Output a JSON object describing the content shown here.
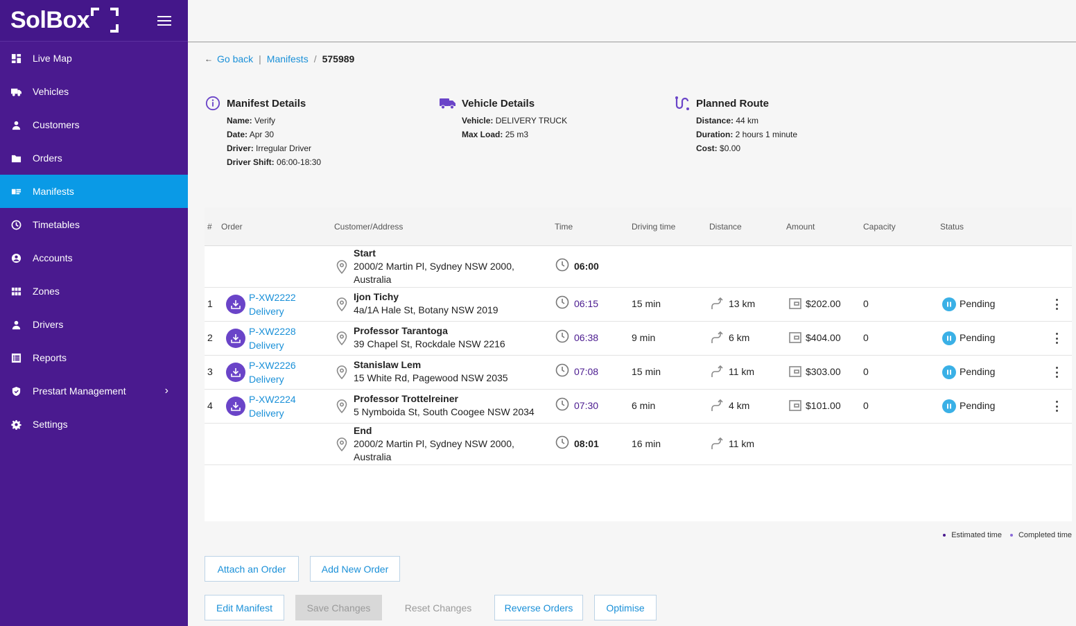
{
  "brand": {
    "logo_text": "SolBox"
  },
  "sidebar": {
    "items": [
      {
        "label": "Live Map",
        "icon": "dashboard-icon"
      },
      {
        "label": "Vehicles",
        "icon": "truck-icon"
      },
      {
        "label": "Customers",
        "icon": "person-icon"
      },
      {
        "label": "Orders",
        "icon": "folder-icon"
      },
      {
        "label": "Manifests",
        "icon": "manifest-icon",
        "active": true
      },
      {
        "label": "Timetables",
        "icon": "clock-icon"
      },
      {
        "label": "Accounts",
        "icon": "account-circle-icon"
      },
      {
        "label": "Zones",
        "icon": "grid-icon"
      },
      {
        "label": "Drivers",
        "icon": "person-icon"
      },
      {
        "label": "Reports",
        "icon": "report-icon"
      },
      {
        "label": "Prestart Management",
        "icon": "shield-icon",
        "has_submenu": true
      },
      {
        "label": "Settings",
        "icon": "gear-icon"
      }
    ]
  },
  "breadcrumb": {
    "back": "Go back",
    "parent": "Manifests",
    "separator": "/",
    "current": "575989",
    "divider": "|"
  },
  "manifest_details": {
    "title": "Manifest Details",
    "name_label": "Name:",
    "name": "Verify",
    "date_label": "Date:",
    "date": "Apr 30",
    "driver_label": "Driver:",
    "driver": "Irregular Driver",
    "shift_label": "Driver Shift:",
    "shift": "06:00-18:30"
  },
  "vehicle_details": {
    "title": "Vehicle Details",
    "vehicle_label": "Vehicle:",
    "vehicle": "DELIVERY TRUCK",
    "max_load_label": "Max Load:",
    "max_load": "25  m3"
  },
  "planned_route": {
    "title": "Planned Route",
    "distance_label": "Distance:",
    "distance": "44 km",
    "duration_label": "Duration:",
    "duration": "2 hours 1 minute",
    "cost_label": "Cost:",
    "cost": "$0.00"
  },
  "table": {
    "headers": {
      "num": "#",
      "order": "Order",
      "customer": "Customer/Address",
      "time": "Time",
      "driving": "Driving time",
      "distance": "Distance",
      "amount": "Amount",
      "capacity": "Capacity",
      "status": "Status"
    },
    "start": {
      "title": "Start",
      "address_line1": "2000/2 Martin Pl, Sydney NSW 2000,",
      "address_line2": "Australia",
      "time": "06:00"
    },
    "rows": [
      {
        "num": "1",
        "order_id": "P-XW2222",
        "order_type": "Delivery",
        "customer": "Ijon Tichy",
        "address": "4a/1A Hale St, Botany NSW 2019",
        "time": "06:15",
        "driving": "15 min",
        "distance": "13 km",
        "amount": "$202.00",
        "capacity": "0",
        "status": "Pending"
      },
      {
        "num": "2",
        "order_id": "P-XW2228",
        "order_type": "Delivery",
        "customer": "Professor Tarantoga",
        "address": "39 Chapel St, Rockdale NSW 2216",
        "time": "06:38",
        "driving": "9 min",
        "distance": "6 km",
        "amount": "$404.00",
        "capacity": "0",
        "status": "Pending"
      },
      {
        "num": "3",
        "order_id": "P-XW2226",
        "order_type": "Delivery",
        "customer": "Stanislaw Lem",
        "address": "15 White Rd, Pagewood NSW 2035",
        "time": "07:08",
        "driving": "15 min",
        "distance": "11 km",
        "amount": "$303.00",
        "capacity": "0",
        "status": "Pending"
      },
      {
        "num": "4",
        "order_id": "P-XW2224",
        "order_type": "Delivery",
        "customer": "Professor Trottelreiner",
        "address": "5 Nymboida St, South Coogee NSW 2034",
        "time": "07:30",
        "driving": "6 min",
        "distance": "4 km",
        "amount": "$101.00",
        "capacity": "0",
        "status": "Pending"
      }
    ],
    "end": {
      "title": "End",
      "address_line1": "2000/2 Martin Pl, Sydney NSW 2000,",
      "address_line2": "Australia",
      "time": "08:01",
      "driving": "16 min",
      "distance": "11 km"
    }
  },
  "legend": {
    "estimated": "Estimated time",
    "completed": "Completed time",
    "estimated_color": "#4a1a8f",
    "completed_color": "#8a6ad8"
  },
  "buttons": {
    "attach": "Attach an Order",
    "add_new": "Add New Order",
    "edit": "Edit Manifest",
    "save": "Save Changes",
    "reset": "Reset Changes",
    "reverse": "Reverse Orders",
    "optimise": "Optimise"
  },
  "colors": {
    "sidebar": "#4a1a8f",
    "active": "#0a9ae6",
    "link": "#1a90d8",
    "status": "#3ab0e6"
  }
}
